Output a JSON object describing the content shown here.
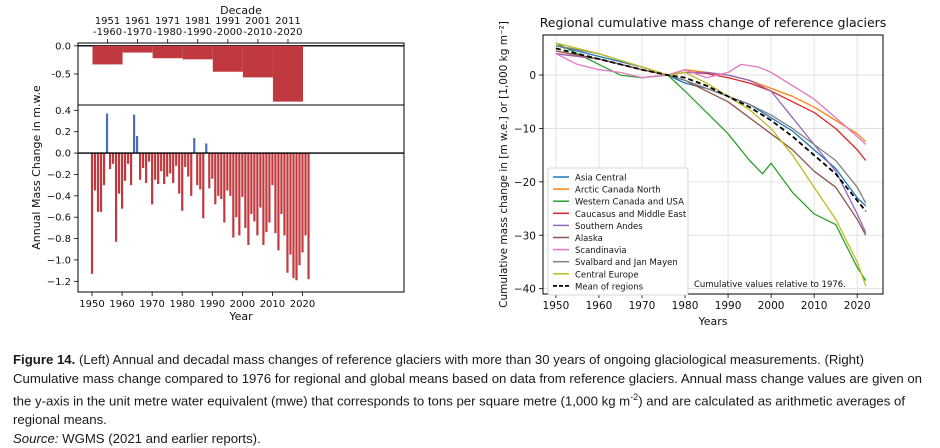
{
  "chart_data": [
    {
      "id": "decadal",
      "type": "bar",
      "xlabel_top": "Decade",
      "categories": [
        "1951\n-1960",
        "1961\n-1970",
        "1971\n-1980",
        "1981\n-1990",
        "1991\n-2000",
        "2001\n-2010",
        "2011\n-2020"
      ],
      "decade_start": [
        1951,
        1961,
        1971,
        1981,
        1991,
        2001,
        2011
      ],
      "values": [
        -0.33,
        -0.12,
        -0.22,
        -0.24,
        -0.46,
        -0.56,
        -0.99
      ],
      "ylim": [
        -1.05,
        0.05
      ],
      "yticks": [
        "0.0",
        "-0.5"
      ],
      "color": "#c0393f",
      "grid": false
    },
    {
      "id": "annual",
      "type": "bar",
      "xlabel": "Year",
      "ylabel": "Annual Mass Change in m.w.e",
      "x": [
        1950,
        1951,
        1952,
        1953,
        1954,
        1955,
        1956,
        1957,
        1958,
        1959,
        1960,
        1961,
        1962,
        1963,
        1964,
        1965,
        1966,
        1967,
        1968,
        1969,
        1970,
        1971,
        1972,
        1973,
        1974,
        1975,
        1976,
        1977,
        1978,
        1979,
        1980,
        1981,
        1982,
        1983,
        1984,
        1985,
        1986,
        1987,
        1988,
        1989,
        1990,
        1991,
        1992,
        1993,
        1994,
        1995,
        1996,
        1997,
        1998,
        1999,
        2000,
        2001,
        2002,
        2003,
        2004,
        2005,
        2006,
        2007,
        2008,
        2009,
        2010,
        2011,
        2012,
        2013,
        2014,
        2015,
        2016,
        2017,
        2018,
        2019,
        2020,
        2021,
        2022
      ],
      "values": [
        -1.13,
        -0.35,
        -0.55,
        -0.55,
        -0.3,
        0.37,
        -0.15,
        -0.1,
        -0.83,
        -0.38,
        -0.52,
        -0.26,
        -0.1,
        -0.3,
        0.36,
        0.16,
        -0.25,
        -0.14,
        -0.28,
        -0.08,
        -0.48,
        -0.25,
        -0.29,
        -0.17,
        -0.29,
        -0.22,
        -0.19,
        -0.28,
        -0.12,
        -0.38,
        -0.54,
        -0.13,
        -0.22,
        -0.4,
        0.14,
        -0.3,
        -0.34,
        -0.61,
        0.09,
        -0.33,
        -0.24,
        -0.48,
        -0.4,
        -0.43,
        -0.65,
        -0.35,
        -0.4,
        -0.79,
        -0.6,
        -0.77,
        -0.41,
        -0.7,
        -0.86,
        -0.57,
        -0.64,
        -0.77,
        -0.51,
        -0.86,
        -0.74,
        -0.65,
        -0.3,
        -0.75,
        -0.91,
        -0.57,
        -0.77,
        -1.12,
        -0.95,
        -1.17,
        -1.19,
        -1.05,
        -0.93,
        -0.77,
        -1.18
      ],
      "ylim": [
        -1.3,
        0.45
      ],
      "yticks": [
        "0.4",
        "0.2",
        "0.0",
        "−0.2",
        "−0.4",
        "−0.6",
        "−0.8",
        "−1.0",
        "−1.2"
      ],
      "xticks": [
        "1950",
        "1960",
        "1970",
        "1980",
        "1990",
        "2000",
        "2010",
        "2020"
      ],
      "positive_color": "#4a6fb3",
      "negative_color": "#c0393f",
      "grid": false
    },
    {
      "id": "cumulative",
      "type": "line",
      "title": "Regional cumulative mass change of reference glaciers",
      "xlabel": "Years",
      "ylabel": "Cumulative mass change in [m w.e.] or [1,000 kg m⁻²]",
      "xlim": [
        1947,
        2026
      ],
      "ylim": [
        -41,
        7.5
      ],
      "xticks": [
        "1950",
        "1960",
        "1970",
        "1980",
        "1990",
        "2000",
        "2010",
        "2020"
      ],
      "yticks": [
        "0",
        "−10",
        "−20",
        "−30",
        "−40"
      ],
      "grid": true,
      "annotation": "Cumulative values relative to 1976.",
      "legend_position": "lower-left",
      "series": [
        {
          "name": "Asia Central",
          "color": "#1f77b4",
          "points": [
            [
              1950,
              5.5
            ],
            [
              1960,
              3.5
            ],
            [
              1970,
              1.5
            ],
            [
              1976,
              0
            ],
            [
              1980,
              -1.5
            ],
            [
              1985,
              -2.5
            ],
            [
              1990,
              -4
            ],
            [
              1995,
              -5.5
            ],
            [
              2000,
              -8
            ],
            [
              2005,
              -10.5
            ],
            [
              2010,
              -14
            ],
            [
              2015,
              -17.5
            ],
            [
              2020,
              -23
            ],
            [
              2022,
              -24.5
            ]
          ]
        },
        {
          "name": "Arctic Canada North",
          "color": "#ff7f0e",
          "points": [
            [
              1950,
              4.5
            ],
            [
              1960,
              3
            ],
            [
              1970,
              1
            ],
            [
              1976,
              0
            ],
            [
              1980,
              1
            ],
            [
              1985,
              0.5
            ],
            [
              1990,
              0
            ],
            [
              1995,
              -1
            ],
            [
              2000,
              -2.5
            ],
            [
              2005,
              -4
            ],
            [
              2010,
              -6
            ],
            [
              2015,
              -8.5
            ],
            [
              2020,
              -11
            ],
            [
              2022,
              -12.5
            ]
          ]
        },
        {
          "name": "Western Canada and USA",
          "color": "#2ca02c",
          "points": [
            [
              1950,
              6
            ],
            [
              1955,
              4
            ],
            [
              1960,
              2
            ],
            [
              1965,
              0
            ],
            [
              1970,
              -0.5
            ],
            [
              1976,
              0
            ],
            [
              1980,
              -3
            ],
            [
              1985,
              -7
            ],
            [
              1990,
              -11
            ],
            [
              1995,
              -16
            ],
            [
              1998,
              -18.5
            ],
            [
              2000,
              -16.5
            ],
            [
              2005,
              -22
            ],
            [
              2010,
              -26
            ],
            [
              2015,
              -28
            ],
            [
              2020,
              -36
            ],
            [
              2022,
              -38.5
            ]
          ]
        },
        {
          "name": "Caucasus and Middle East",
          "color": "#d62728",
          "points": [
            [
              1950,
              4
            ],
            [
              1960,
              3
            ],
            [
              1970,
              1
            ],
            [
              1976,
              0
            ],
            [
              1980,
              0.5
            ],
            [
              1985,
              0.3
            ],
            [
              1990,
              -0.5
            ],
            [
              1995,
              -1.5
            ],
            [
              2000,
              -3
            ],
            [
              2005,
              -5
            ],
            [
              2010,
              -7
            ],
            [
              2015,
              -10
            ],
            [
              2020,
              -14
            ],
            [
              2022,
              -16
            ]
          ]
        },
        {
          "name": "Southern Andes",
          "color": "#9467bd",
          "points": [
            [
              1950,
              4
            ],
            [
              1960,
              3
            ],
            [
              1970,
              1
            ],
            [
              1976,
              0
            ],
            [
              1980,
              0.5
            ],
            [
              1985,
              0.5
            ],
            [
              1990,
              0
            ],
            [
              1995,
              -1
            ],
            [
              2000,
              -3
            ],
            [
              2005,
              -8
            ],
            [
              2010,
              -13
            ],
            [
              2015,
              -18
            ],
            [
              2020,
              -26
            ],
            [
              2022,
              -29.5
            ]
          ]
        },
        {
          "name": "Alaska",
          "color": "#8c564b",
          "points": [
            [
              1950,
              4.5
            ],
            [
              1960,
              3
            ],
            [
              1970,
              1
            ],
            [
              1976,
              0
            ],
            [
              1980,
              -1
            ],
            [
              1985,
              -3
            ],
            [
              1990,
              -5
            ],
            [
              1995,
              -8
            ],
            [
              2000,
              -11
            ],
            [
              2005,
              -14
            ],
            [
              2010,
              -18
            ],
            [
              2015,
              -21
            ],
            [
              2020,
              -27
            ],
            [
              2022,
              -30
            ]
          ]
        },
        {
          "name": "Scandinavia",
          "color": "#e377c2",
          "points": [
            [
              1950,
              4
            ],
            [
              1955,
              2
            ],
            [
              1960,
              1
            ],
            [
              1965,
              0.5
            ],
            [
              1970,
              -0.5
            ],
            [
              1976,
              0
            ],
            [
              1980,
              1
            ],
            [
              1985,
              -0.5
            ],
            [
              1990,
              0.5
            ],
            [
              1993,
              2
            ],
            [
              1997,
              1.5
            ],
            [
              2000,
              0.5
            ],
            [
              2005,
              -2
            ],
            [
              2010,
              -4.5
            ],
            [
              2015,
              -8
            ],
            [
              2020,
              -11.5
            ],
            [
              2022,
              -13
            ]
          ]
        },
        {
          "name": "Svalbard and Jan Mayen",
          "color": "#7f7f7f",
          "points": [
            [
              1950,
              5.5
            ],
            [
              1960,
              4
            ],
            [
              1970,
              1.5
            ],
            [
              1976,
              0
            ],
            [
              1980,
              -1
            ],
            [
              1985,
              -2.5
            ],
            [
              1990,
              -4
            ],
            [
              1995,
              -5.5
            ],
            [
              2000,
              -7.5
            ],
            [
              2005,
              -10
            ],
            [
              2010,
              -13
            ],
            [
              2015,
              -16
            ],
            [
              2020,
              -21
            ],
            [
              2022,
              -24
            ]
          ]
        },
        {
          "name": "Central Europe",
          "color": "#bcbd22",
          "points": [
            [
              1950,
              6
            ],
            [
              1960,
              4
            ],
            [
              1970,
              1.5
            ],
            [
              1976,
              0
            ],
            [
              1980,
              0.5
            ],
            [
              1985,
              -1.5
            ],
            [
              1990,
              -4
            ],
            [
              1995,
              -6.5
            ],
            [
              2000,
              -10
            ],
            [
              2005,
              -15
            ],
            [
              2010,
              -21
            ],
            [
              2015,
              -27
            ],
            [
              2020,
              -35
            ],
            [
              2022,
              -39.5
            ]
          ]
        },
        {
          "name": "Mean of regions",
          "color": "#000000",
          "dashed": true,
          "points": [
            [
              1950,
              5
            ],
            [
              1960,
              3
            ],
            [
              1970,
              1
            ],
            [
              1976,
              0
            ],
            [
              1980,
              -0.5
            ],
            [
              1985,
              -2
            ],
            [
              1990,
              -4
            ],
            [
              1995,
              -6
            ],
            [
              2000,
              -8.5
            ],
            [
              2005,
              -11.5
            ],
            [
              2010,
              -15
            ],
            [
              2015,
              -18.5
            ],
            [
              2020,
              -23.5
            ],
            [
              2022,
              -25.5
            ]
          ]
        }
      ]
    }
  ],
  "caption": {
    "label": "Figure 14.",
    "text": " (Left) Annual and decadal mass changes of reference glaciers with more than 30 years of ongoing glaciological measurements. (Right) Cumulative mass change compared to 1976 for regional and global means based on data from reference glaciers. Annual mass change values are given on the y-axis in the unit metre water equivalent (mwe) that corresponds to tons per square metre (1,000 kg m",
    "superscript": "-2",
    "text_after": ") and are calculated as arithmetic averages of regional means.",
    "source_label": "Source:",
    "source_text": " WGMS (2021 and earlier reports)."
  }
}
